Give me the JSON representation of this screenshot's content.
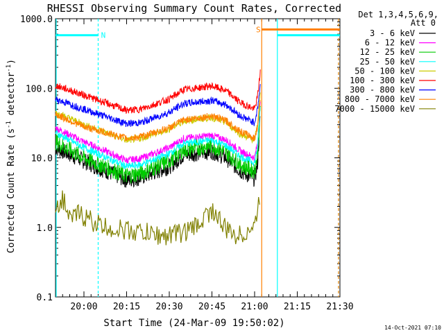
{
  "chart_data": {
    "type": "line",
    "title": "RHESSI Observing Summary Count Rates, Corrected",
    "xlabel": "Start Time (24-Mar-09 19:50:02)",
    "ylabel_main": "Corrected Count Rate (s",
    "ylabel_sup1": "-1",
    "ylabel_mid": " detector",
    "ylabel_sup2": "-1",
    "ylabel_end": ")",
    "yscale": "log",
    "ylim": [
      0.1,
      1000
    ],
    "xlim_min": [
      0,
      100
    ],
    "x_unit": "minutes after 19:50:02",
    "x_tick_labels": [
      {
        "t": 10,
        "label": "20:00"
      },
      {
        "t": 25,
        "label": "20:15"
      },
      {
        "t": 40,
        "label": "20:30"
      },
      {
        "t": 55,
        "label": "20:45"
      },
      {
        "t": 70,
        "label": "21:00"
      },
      {
        "t": 85,
        "label": "21:15"
      },
      {
        "t": 100,
        "label": "21:30"
      }
    ],
    "y_tick_labels": [
      {
        "v": 0.1,
        "label": "0.1"
      },
      {
        "v": 1,
        "label": "1.0"
      },
      {
        "v": 10,
        "label": "10.0"
      },
      {
        "v": 100,
        "label": "100.0"
      },
      {
        "v": 1000,
        "label": "1000.0"
      }
    ],
    "legend": {
      "placement": "right",
      "header1": "Det 1,3,4,5,6,9,",
      "header2": "Att 0"
    },
    "series": [
      {
        "name": "3 - 6 keV",
        "color": "#000000",
        "x": [
          0,
          10,
          25,
          30,
          40,
          45,
          55,
          60,
          65,
          70,
          71,
          72
        ],
        "y": [
          14,
          9,
          4.8,
          5.2,
          7.5,
          11,
          12.5,
          10,
          6.5,
          5,
          8,
          40
        ]
      },
      {
        "name": "6 - 12 keV",
        "color": "#ff00ff",
        "x": [
          0,
          10,
          25,
          30,
          40,
          45,
          55,
          60,
          65,
          70,
          71,
          72
        ],
        "y": [
          27,
          17,
          9.2,
          9.8,
          14,
          19,
          21,
          18,
          12.5,
          10,
          16,
          60
        ]
      },
      {
        "name": "12 - 25 keV",
        "color": "#00cc00",
        "x": [
          0,
          10,
          25,
          30,
          40,
          45,
          55,
          60,
          65,
          70,
          71,
          72
        ],
        "y": [
          17,
          10,
          5.5,
          6,
          9,
          13,
          15,
          12,
          8,
          6.5,
          11,
          50
        ]
      },
      {
        "name": "25 - 50 keV",
        "color": "#00ffff",
        "x": [
          0,
          10,
          25,
          30,
          40,
          45,
          55,
          60,
          65,
          70,
          71,
          72
        ],
        "y": [
          23,
          14,
          7.5,
          8,
          11.5,
          16,
          18,
          15,
          10.5,
          8.5,
          14,
          55
        ]
      },
      {
        "name": "50 - 100 keV",
        "color": "#cccc00",
        "x": [
          0,
          10,
          25,
          30,
          40,
          45,
          55,
          60,
          65,
          70,
          71,
          72
        ],
        "y": [
          45,
          30,
          18,
          19,
          26,
          34,
          38,
          32,
          22,
          18,
          30,
          80
        ]
      },
      {
        "name": "100 - 300 keV",
        "color": "#ff0000",
        "x": [
          0,
          10,
          25,
          30,
          40,
          45,
          55,
          60,
          65,
          70,
          71,
          72
        ],
        "y": [
          110,
          80,
          48,
          50,
          70,
          95,
          108,
          92,
          62,
          50,
          75,
          170
        ]
      },
      {
        "name": "300 - 800 keV",
        "color": "#0000ff",
        "x": [
          0,
          10,
          25,
          30,
          40,
          45,
          55,
          60,
          65,
          70,
          71,
          72
        ],
        "y": [
          70,
          50,
          31,
          32,
          45,
          60,
          67,
          58,
          40,
          32,
          50,
          110
        ]
      },
      {
        "name": "800 - 7000 keV",
        "color": "#ff8000",
        "x": [
          0,
          10,
          25,
          30,
          40,
          45,
          55,
          60,
          65,
          70,
          71,
          72
        ],
        "y": [
          42,
          28,
          19,
          20,
          27,
          35,
          40,
          34,
          24,
          19,
          28,
          65
        ]
      },
      {
        "name": "7000 - 15000 keV",
        "color": "#808000",
        "x": [
          0,
          3,
          5,
          8,
          12,
          17,
          30,
          38,
          47,
          50,
          55,
          58,
          60,
          65,
          68,
          70,
          72
        ],
        "y": [
          2.2,
          2.5,
          1.2,
          1.6,
          1.3,
          1.0,
          0.85,
          0.75,
          0.9,
          1.1,
          1.8,
          1.2,
          0.9,
          0.75,
          0.95,
          1.0,
          3.0
        ]
      }
    ],
    "attenuator_bars": [
      {
        "color": "#00ffff",
        "x_start": 0,
        "x_end": 15,
        "y": 580
      },
      {
        "color": "#ff8000",
        "x_start": 72.5,
        "x_end": 100,
        "y": 700
      },
      {
        "color": "#00ffff",
        "x_start": 78,
        "x_end": 100,
        "y": 580
      }
    ],
    "vertical_markers": [
      {
        "x": 15,
        "color": "#00ffff",
        "style": "dashed"
      },
      {
        "x": 72.5,
        "color": "#ff8000",
        "style": "solid"
      },
      {
        "x": 78,
        "color": "#00ffff",
        "style": "solid"
      },
      {
        "x": 99.5,
        "color": "#00ffff",
        "style": "dashed"
      },
      {
        "x": 99.5,
        "color": "#ff8000",
        "style": "dashed"
      }
    ],
    "flag_labels": [
      {
        "text": "N",
        "x": 16,
        "y": 580,
        "color": "#00ffff"
      },
      {
        "text": "S",
        "x": 70.5,
        "y": 700,
        "color": "#ff8000"
      }
    ],
    "grid": false,
    "footer": "14-Oct-2021 07:10"
  }
}
